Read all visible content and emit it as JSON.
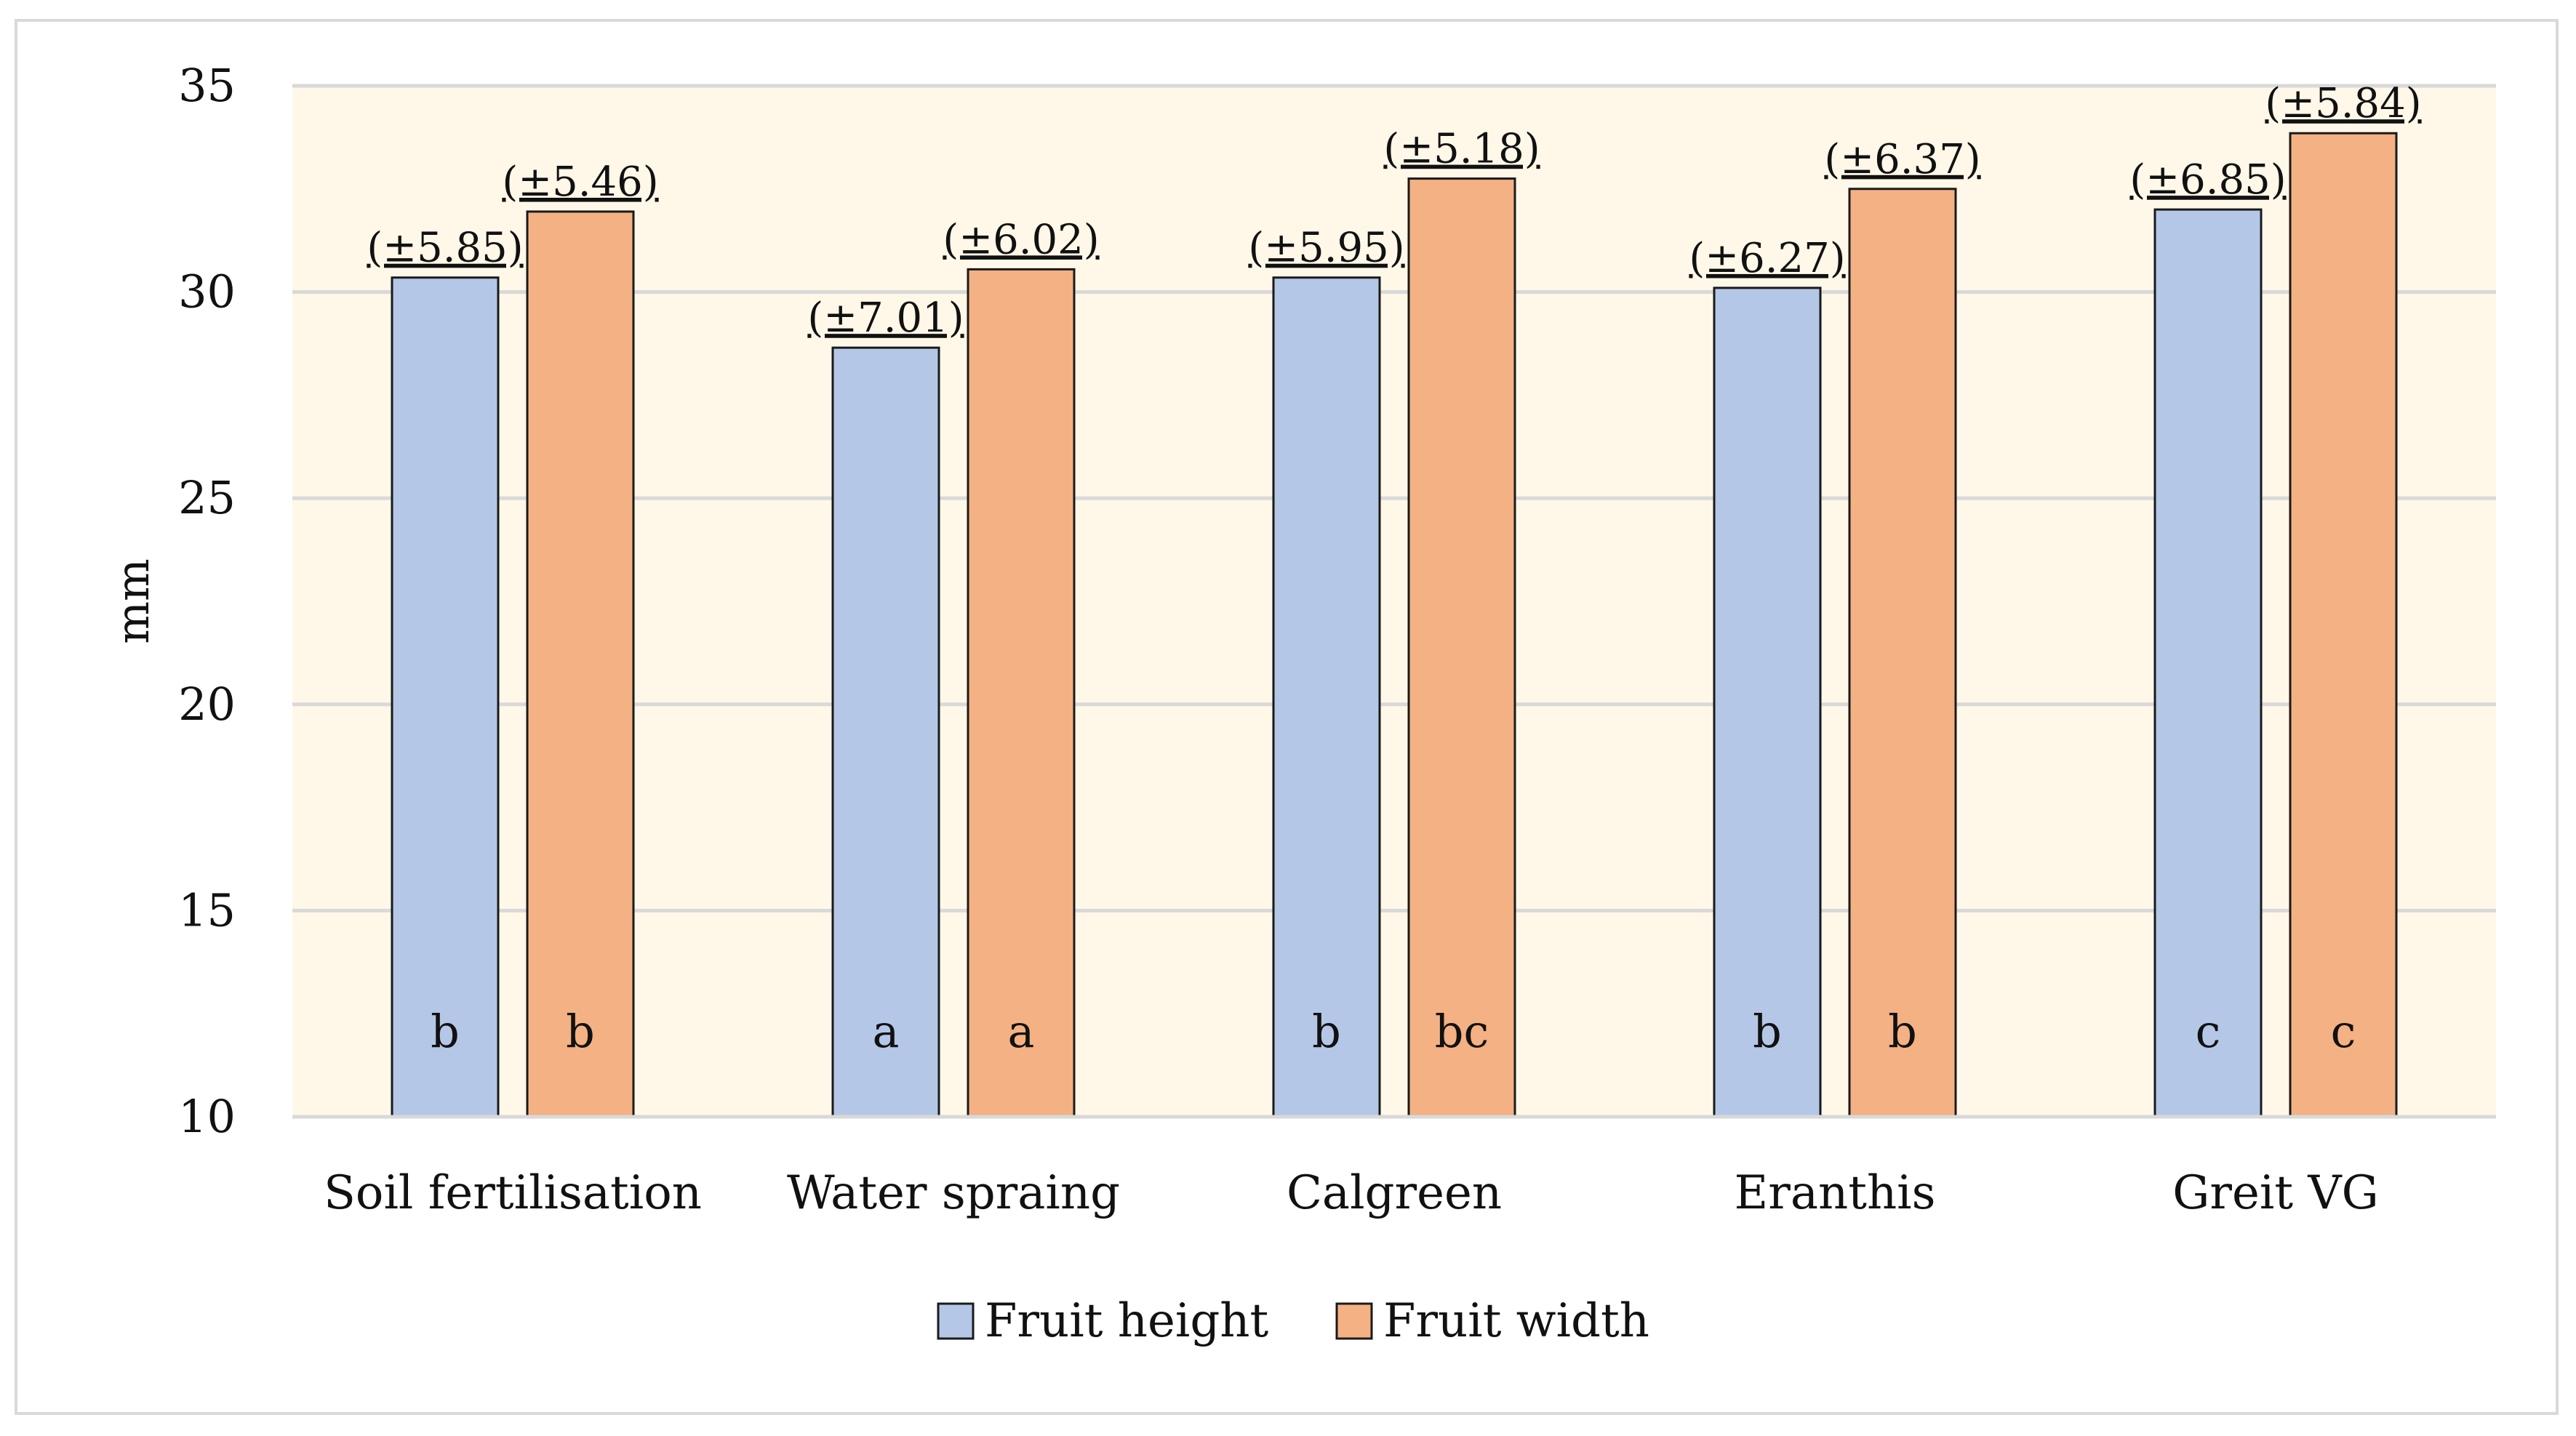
{
  "chart_data": {
    "type": "bar",
    "title": "",
    "xlabel": "",
    "ylabel": "mm",
    "ylim": [
      10,
      35
    ],
    "yticks": [
      10,
      15,
      20,
      25,
      30,
      35
    ],
    "grid": true,
    "plot_background": "#fff8e9",
    "legend_position": "bottom",
    "categories": [
      "Soil fertilisation",
      "Water spraing",
      "Calgreen",
      "Eranthis",
      "Greit VG"
    ],
    "series": [
      {
        "name": "Fruit height",
        "color": "#b4c7e7",
        "values": [
          30.35,
          28.65,
          30.35,
          30.1,
          32.0
        ],
        "sd_labels": [
          "(±5.85)",
          "(±7.01)",
          "(±5.95)",
          "(±6.27)",
          "(±6.85)"
        ],
        "letters": [
          "b",
          "a",
          "b",
          "b",
          "c"
        ]
      },
      {
        "name": "Fruit width",
        "color": "#f4b183",
        "values": [
          31.95,
          30.55,
          32.75,
          32.5,
          33.85
        ],
        "sd_labels": [
          "(±5.46)",
          "(±6.02)",
          "(±5.18)",
          "(±6.37)",
          "(±5.84)"
        ],
        "letters": [
          "b",
          "a",
          "bc",
          "b",
          "c"
        ]
      }
    ]
  }
}
